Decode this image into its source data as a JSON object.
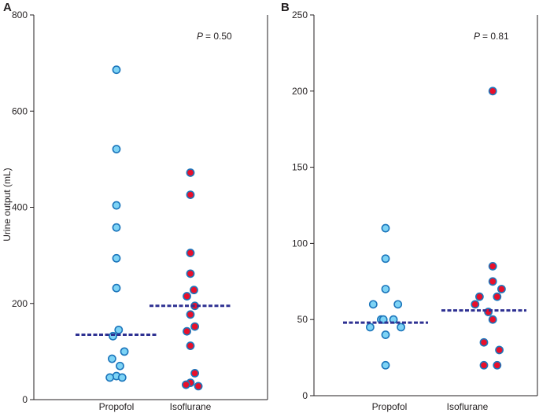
{
  "chart_data": [
    {
      "type": "scatter",
      "panel": "A",
      "ylabel": "Urine output (mL)",
      "ylim": [
        0,
        800
      ],
      "yticks": [
        0,
        200,
        400,
        600,
        800
      ],
      "annotation": {
        "p_symbol": "P",
        "p_text": "= 0.50"
      },
      "categories": [
        "Propofol",
        "Isoflurane"
      ],
      "series": [
        {
          "name": "Propofol",
          "fill": "#7dd3f5",
          "stroke": "#1b75bb",
          "median": 135,
          "points": [
            {
              "offset": 0,
              "value": 686
            },
            {
              "offset": 0,
              "value": 521
            },
            {
              "offset": 0,
              "value": 404
            },
            {
              "offset": 0,
              "value": 358
            },
            {
              "offset": 0,
              "value": 294
            },
            {
              "offset": 0,
              "value": 232
            },
            {
              "offset": 0.05,
              "value": 145
            },
            {
              "offset": -0.08,
              "value": 132
            },
            {
              "offset": 0.18,
              "value": 100
            },
            {
              "offset": -0.1,
              "value": 85
            },
            {
              "offset": 0.08,
              "value": 70
            },
            {
              "offset": 0,
              "value": 49
            },
            {
              "offset": -0.15,
              "value": 46
            },
            {
              "offset": 0.13,
              "value": 46
            }
          ]
        },
        {
          "name": "Isoflurane",
          "fill": "#e8102b",
          "stroke": "#1b75bb",
          "median": 195,
          "points": [
            {
              "offset": 0,
              "value": 472
            },
            {
              "offset": 0,
              "value": 426
            },
            {
              "offset": 0,
              "value": 305
            },
            {
              "offset": 0,
              "value": 262
            },
            {
              "offset": 0.08,
              "value": 228
            },
            {
              "offset": -0.08,
              "value": 215
            },
            {
              "offset": 0.1,
              "value": 195
            },
            {
              "offset": 0,
              "value": 177
            },
            {
              "offset": 0.1,
              "value": 152
            },
            {
              "offset": -0.08,
              "value": 142
            },
            {
              "offset": 0,
              "value": 112
            },
            {
              "offset": 0.1,
              "value": 55
            },
            {
              "offset": 0,
              "value": 35
            },
            {
              "offset": -0.1,
              "value": 31
            },
            {
              "offset": 0.18,
              "value": 28
            }
          ]
        }
      ]
    },
    {
      "type": "scatter",
      "panel": "B",
      "ylabel": "",
      "ylim": [
        0,
        250
      ],
      "yticks": [
        0,
        50,
        100,
        150,
        200,
        250
      ],
      "annotation": {
        "p_symbol": "P",
        "p_text": "= 0.81"
      },
      "categories": [
        "Propofol",
        "Isoflurane"
      ],
      "series": [
        {
          "name": "Propofol",
          "fill": "#7dd3f5",
          "stroke": "#1b75bb",
          "median": 48,
          "points": [
            {
              "offset": 0,
              "value": 110
            },
            {
              "offset": 0,
              "value": 90
            },
            {
              "offset": 0,
              "value": 70
            },
            {
              "offset": -0.28,
              "value": 60
            },
            {
              "offset": 0.28,
              "value": 60
            },
            {
              "offset": -0.1,
              "value": 50
            },
            {
              "offset": -0.05,
              "value": 50
            },
            {
              "offset": 0.18,
              "value": 50
            },
            {
              "offset": -0.35,
              "value": 45
            },
            {
              "offset": 0.35,
              "value": 45
            },
            {
              "offset": 0,
              "value": 40
            },
            {
              "offset": 0,
              "value": 20
            }
          ]
        },
        {
          "name": "Isoflurane",
          "fill": "#e8102b",
          "stroke": "#1b75bb",
          "median": 56,
          "points": [
            {
              "offset": 0.2,
              "value": 200
            },
            {
              "offset": 0.2,
              "value": 85
            },
            {
              "offset": 0.2,
              "value": 75
            },
            {
              "offset": 0.4,
              "value": 70
            },
            {
              "offset": -0.1,
              "value": 65
            },
            {
              "offset": 0.3,
              "value": 65
            },
            {
              "offset": -0.2,
              "value": 60
            },
            {
              "offset": 0.1,
              "value": 55
            },
            {
              "offset": 0.2,
              "value": 50
            },
            {
              "offset": 0,
              "value": 35
            },
            {
              "offset": 0.35,
              "value": 30
            },
            {
              "offset": 0,
              "value": 20
            },
            {
              "offset": 0.3,
              "value": 20
            }
          ]
        }
      ]
    }
  ],
  "colors": {
    "median_line": "#2e3192",
    "axis": "#231f20"
  }
}
